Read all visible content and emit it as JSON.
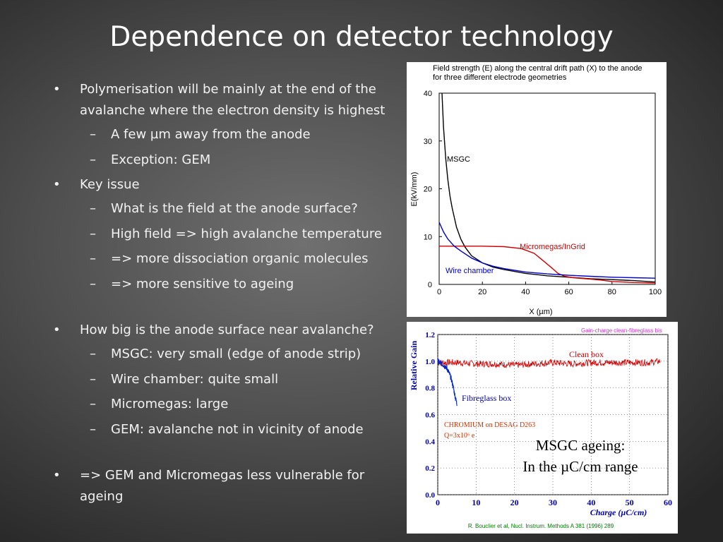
{
  "slide": {
    "title": "Dependence on detector technology"
  },
  "bullets": {
    "b1": "Polymerisation will be mainly at the end of the avalanche where the electron density is highest",
    "b1_1": "A few µm away from the anode",
    "b1_2": "Exception: GEM",
    "b2": "Key issue",
    "b2_1": "What is the field at the anode surface?",
    "b2_2": "High field => high avalanche temperature",
    "b2_3": "=> more dissociation organic molecules",
    "b2_4": "=> more sensitive to ageing",
    "b3": "How big is the anode surface near avalanche?",
    "b3_1": "MSGC: very small (edge of anode strip)",
    "b3_2": "Wire chamber: quite small",
    "b3_3": "Micromegas: large",
    "b3_4": "GEM: avalanche not in vicinity of anode",
    "b4": "=> GEM and Micromegas less vulnerable for ageing",
    "bullet_marker": "•",
    "dash_marker": "–"
  },
  "chart_data": [
    {
      "type": "line",
      "title": "Field strength (E) along the central drift path (X) to the anode",
      "subtitle": "for three different electrode geometries",
      "xlabel": "X (µm)",
      "ylabel": "E(kV/mm)",
      "xlim": [
        0,
        100
      ],
      "ylim": [
        0,
        40
      ],
      "xticks": [
        "0",
        "20",
        "40",
        "60",
        "80",
        "100"
      ],
      "yticks": [
        "0",
        "10",
        "20",
        "30",
        "40"
      ],
      "series": [
        {
          "name": "MSGC",
          "color": "#000000",
          "x": [
            1.3,
            2,
            3,
            4,
            5,
            6,
            8,
            10,
            12,
            15,
            20,
            25,
            30,
            40,
            50,
            60,
            70,
            80,
            90,
            100
          ],
          "y": [
            40,
            33,
            26.5,
            22,
            18.5,
            16,
            12,
            9.5,
            7.8,
            6,
            4.5,
            3.6,
            3.1,
            2.3,
            1.8,
            1.5,
            1.2,
            1.0,
            0.8,
            0.5
          ]
        },
        {
          "name": "Micromegas/InGrid",
          "color": "#cc0000",
          "x": [
            0,
            10,
            20,
            30,
            38,
            44,
            48,
            52,
            55,
            58,
            62,
            66,
            70,
            75,
            80,
            90,
            100
          ],
          "y": [
            8,
            8,
            8,
            7.9,
            7.5,
            6.5,
            5,
            3.5,
            2.3,
            1.7,
            1.4,
            1.25,
            1.1,
            0.9,
            0.6,
            0.4,
            0.3
          ]
        },
        {
          "name": "Wire chamber",
          "color": "#0000cc",
          "x": [
            0,
            2,
            4,
            7,
            10,
            15,
            20,
            25,
            30,
            40,
            50,
            60,
            70,
            80,
            90,
            100
          ],
          "y": [
            13,
            11,
            9.5,
            8,
            7,
            5.5,
            4.5,
            3.8,
            3.3,
            2.6,
            2.2,
            1.9,
            1.7,
            1.5,
            1.4,
            1.3
          ]
        }
      ],
      "annotations": [
        "MSGC",
        "Micromegas/InGrid",
        "Wire chamber"
      ]
    },
    {
      "type": "line",
      "title": "Gain-charge clean-fibreglass bis",
      "xlabel": "Charge (µC/cm)",
      "ylabel": "Relative Gain",
      "xlim": [
        0,
        60
      ],
      "ylim": [
        0,
        1.2
      ],
      "xticks": [
        "0",
        "10",
        "20",
        "30",
        "40",
        "50",
        "60"
      ],
      "yticks": [
        "0.0",
        "0.2",
        "0.4",
        "0.6",
        "0.8",
        "1.0",
        "1.2"
      ],
      "series": [
        {
          "name": "Clean box",
          "color": "#cc0000",
          "x": [
            0,
            5,
            10,
            15,
            20,
            25,
            30,
            35,
            40,
            45,
            50,
            55,
            58
          ],
          "y": [
            0.99,
            0.99,
            0.98,
            0.98,
            0.97,
            0.98,
            0.99,
            0.98,
            0.99,
            0.99,
            0.99,
            0.99,
            1.0
          ]
        },
        {
          "name": "Fibreglass box",
          "color": "#0022cc",
          "x": [
            0,
            0.5,
            1,
            1.5,
            2,
            2.5,
            3,
            3.5,
            4,
            4.5,
            5
          ],
          "y": [
            1.0,
            0.99,
            0.98,
            0.97,
            0.96,
            0.94,
            0.91,
            0.87,
            0.81,
            0.74,
            0.68
          ]
        }
      ],
      "annotations": [
        "Clean box",
        "Fibreglass box",
        "CHROMIUM on DESAG D263",
        "Q=3x10⁶ e",
        "MSGC ageing:",
        "In the µC/cm range"
      ],
      "source": "R. Bouclier et al, Nucl. Instrum. Methods A 381 (1996) 289"
    }
  ]
}
